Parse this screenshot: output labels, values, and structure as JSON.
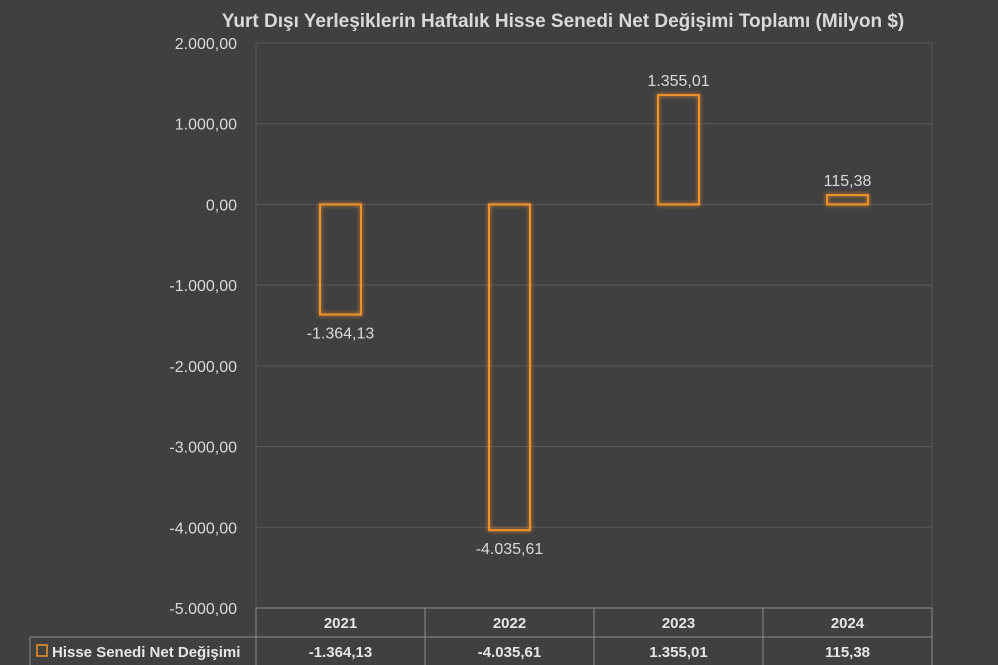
{
  "chart_data": {
    "type": "bar",
    "title": "Yurt Dışı Yerleşiklerin Haftalık Hisse Senedi Net Değişimi Toplamı (Milyon $)",
    "categories": [
      "2021",
      "2022",
      "2023",
      "2024"
    ],
    "series": [
      {
        "name": "Hisse Senedi Net Değişimi",
        "values": [
          -1364.13,
          -4035.61,
          1355.01,
          115.38
        ],
        "value_labels": [
          "-1.364,13",
          "-4.035,61",
          "1.355,01",
          "115,38"
        ],
        "color": "#f0922a"
      }
    ],
    "ylim": [
      -5000,
      2000
    ],
    "y_ticks": [
      2000,
      1000,
      0,
      -1000,
      -2000,
      -3000,
      -4000,
      -5000
    ],
    "y_tick_labels": [
      "2.000,00",
      "1.000,00",
      "0,00",
      "-1.000,00",
      "-2.000,00",
      "-3.000,00",
      "-4.000,00",
      "-5.000,00"
    ],
    "grid": true,
    "legend": "data-table-left",
    "data_table": true
  },
  "colors": {
    "background": "#404040",
    "gridline": "#595959",
    "bar_outline": "#f0922a",
    "text": "#d9d9d9"
  }
}
